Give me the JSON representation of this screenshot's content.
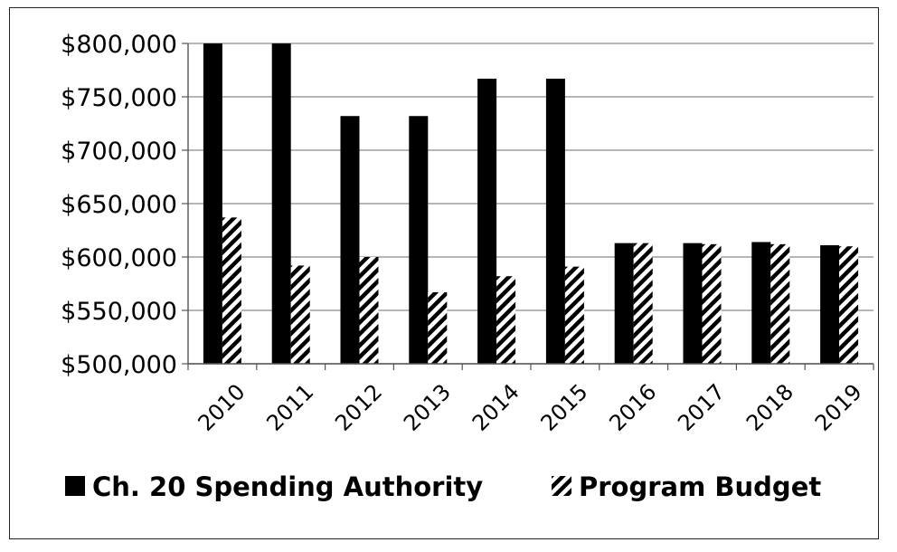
{
  "chart_data": {
    "type": "bar",
    "categories": [
      "2010",
      "2011",
      "2012",
      "2013",
      "2014",
      "2015",
      "2016",
      "2017",
      "2018",
      "2019"
    ],
    "series": [
      {
        "name": "Ch. 20 Spending Authority",
        "values": [
          800000,
          800000,
          732000,
          732000,
          767000,
          767000,
          613000,
          613000,
          614000,
          611000
        ],
        "color": "#000000",
        "pattern": "solid"
      },
      {
        "name": "Program Budget",
        "values": [
          637000,
          592000,
          600000,
          567000,
          582000,
          591000,
          613000,
          612000,
          612000,
          610000
        ],
        "color": "#000000",
        "pattern": "diagonal-hatch"
      }
    ],
    "ylim": [
      500000,
      800000
    ],
    "yticks": [
      500000,
      550000,
      600000,
      650000,
      700000,
      750000,
      800000
    ],
    "ytick_labels": [
      "$500,000",
      "$550,000",
      "$600,000",
      "$650,000",
      "$700,000",
      "$750,000",
      "$800,000"
    ],
    "title": "",
    "xlabel": "",
    "ylabel": "",
    "grid": true,
    "legend_position": "bottom"
  }
}
